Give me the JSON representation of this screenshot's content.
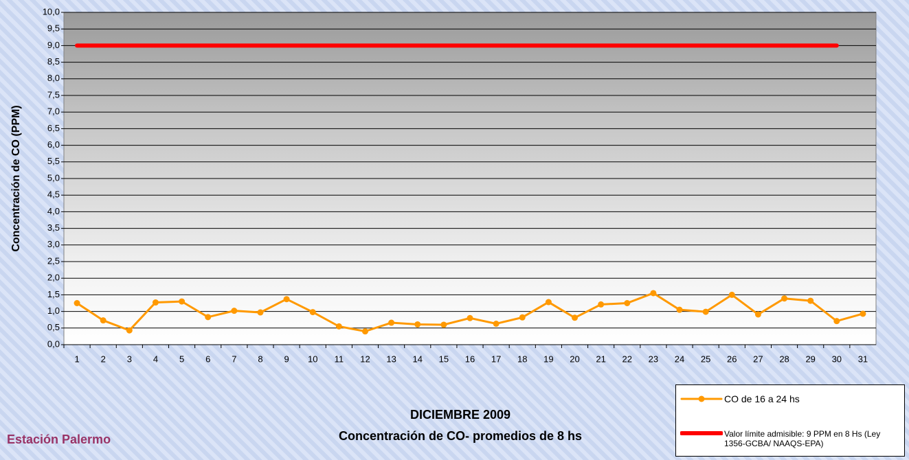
{
  "chart_data": {
    "type": "line",
    "title": "DICIEMBRE 2009",
    "subtitle": "Concentración de CO- promedios de 8 hs",
    "annotation": "Estación Palermo",
    "y_label": "Concentración de CO (PPM)",
    "categories": [
      "1",
      "2",
      "3",
      "4",
      "5",
      "6",
      "7",
      "8",
      "9",
      "10",
      "11",
      "12",
      "13",
      "14",
      "15",
      "16",
      "17",
      "18",
      "19",
      "20",
      "21",
      "22",
      "23",
      "24",
      "25",
      "26",
      "27",
      "28",
      "29",
      "30",
      "31"
    ],
    "series": [
      {
        "name": "CO de 16 a 24 hs",
        "color": "#ff9900",
        "marker": "circle",
        "values": [
          1.25,
          0.73,
          0.43,
          1.27,
          1.3,
          0.83,
          1.02,
          0.97,
          1.37,
          0.98,
          0.55,
          0.4,
          0.66,
          0.61,
          0.6,
          0.8,
          0.63,
          0.82,
          1.28,
          0.81,
          1.21,
          1.25,
          1.55,
          1.05,
          0.99,
          1.5,
          0.91,
          1.39,
          1.32,
          0.71,
          0.93
        ]
      },
      {
        "name": "Valor límite admisible: 9 PPM en 8 Hs (Ley 1356-GCBA/ NAAQS-EPA)",
        "color": "#ff0000",
        "values": [
          9,
          9,
          9,
          9,
          9,
          9,
          9,
          9,
          9,
          9,
          9,
          9,
          9,
          9,
          9,
          9,
          9,
          9,
          9,
          9,
          9,
          9,
          9,
          9,
          9,
          9,
          9,
          9,
          9,
          9,
          null
        ]
      }
    ],
    "ylim": [
      0,
      10
    ],
    "yticks": [
      {
        "value": 0,
        "label": "0,0"
      },
      {
        "value": 0.5,
        "label": "0,5"
      },
      {
        "value": 1,
        "label": "1,0"
      },
      {
        "value": 1.5,
        "label": "1,5"
      },
      {
        "value": 2,
        "label": "2,0"
      },
      {
        "value": 2.5,
        "label": "2,5"
      },
      {
        "value": 3,
        "label": "3,0"
      },
      {
        "value": 3.5,
        "label": "3,5"
      },
      {
        "value": 4,
        "label": "4,0"
      },
      {
        "value": 4.5,
        "label": "4,5"
      },
      {
        "value": 5,
        "label": "5,0"
      },
      {
        "value": 5.5,
        "label": "5,5"
      },
      {
        "value": 6,
        "label": "6,0"
      },
      {
        "value": 6.5,
        "label": "6,5"
      },
      {
        "value": 7,
        "label": "7,0"
      },
      {
        "value": 7.5,
        "label": "7,5"
      },
      {
        "value": 8,
        "label": "8,0"
      },
      {
        "value": 8.5,
        "label": "8,5"
      },
      {
        "value": 9,
        "label": "9,0"
      },
      {
        "value": 9.5,
        "label": "9,5"
      },
      {
        "value": 10,
        "label": "10,0"
      }
    ],
    "grid": true
  }
}
